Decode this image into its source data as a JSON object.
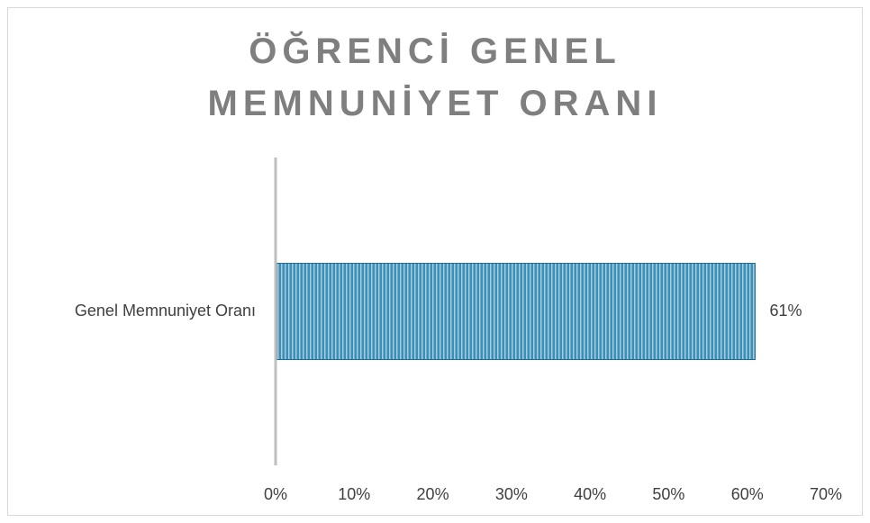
{
  "chart_data": {
    "type": "bar",
    "orientation": "horizontal",
    "title": "ÖĞRENCİ GENEL MEMNUNİYET ORANI",
    "categories": [
      "Genel Memnuniyet Oranı"
    ],
    "values": [
      61
    ],
    "value_labels": [
      "61%"
    ],
    "color": "#3b8fb8",
    "xlim": [
      0,
      70
    ],
    "xticks": [
      {
        "value": 0,
        "label": "0%"
      },
      {
        "value": 10,
        "label": "10%"
      },
      {
        "value": 20,
        "label": "20%"
      },
      {
        "value": 30,
        "label": "30%"
      },
      {
        "value": 40,
        "label": "40%"
      },
      {
        "value": 50,
        "label": "50%"
      },
      {
        "value": 60,
        "label": "60%"
      },
      {
        "value": 70,
        "label": "70%"
      }
    ],
    "grid": false
  }
}
